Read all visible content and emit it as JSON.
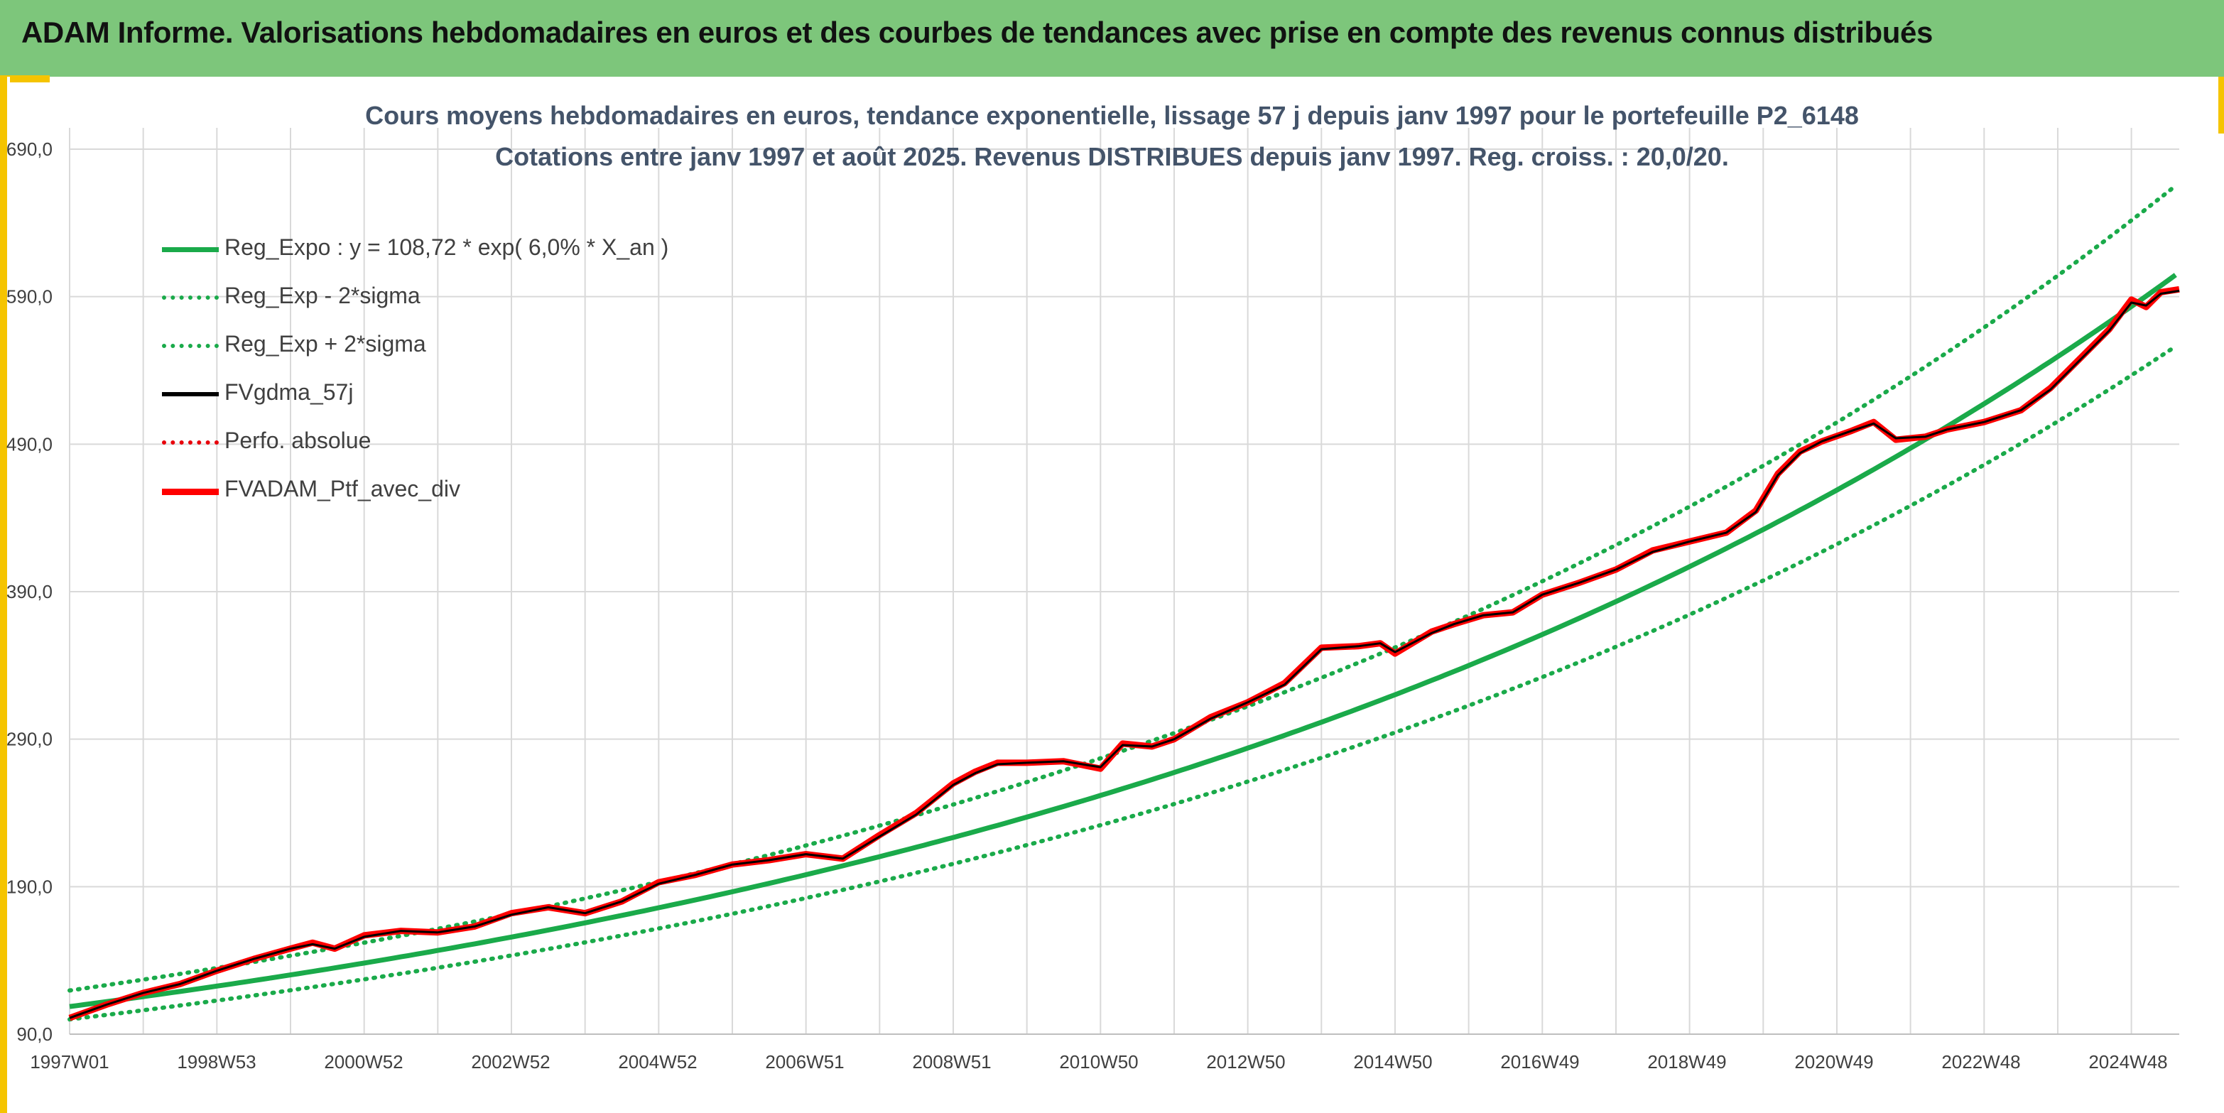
{
  "header": {
    "title": "ADAM Informe. Valorisations hebdomadaires en euros et des courbes de tendances avec prise en compte des revenus connus distribués"
  },
  "colors": {
    "banner": "#7dc67b",
    "trend": "#1aaa4a",
    "fv_gdma": "#000000",
    "perfo": "#e8000b",
    "portfolio": "#ff0000",
    "grid": "#d9d9d9",
    "frame": "#f5c400"
  },
  "chart_data": {
    "type": "line",
    "title": "Cours moyens hebdomadaires en euros, tendance exponentielle, lissage 57 j depuis janv 1997 pour le portefeuille P2_6148",
    "subtitle": "Cotations entre janv 1997 et août 2025. Revenus DISTRIBUES depuis janv 1997. Reg. croiss. : 20,0/20.",
    "xlabel": "",
    "ylabel": "",
    "ylim": [
      90,
      690
    ],
    "y_ticks": [
      "90,0",
      "190,0",
      "290,0",
      "390,0",
      "490,0",
      "590,0",
      "690,0"
    ],
    "x_ticks": [
      "1997W01",
      "1998W53",
      "2000W52",
      "2002W52",
      "2004W52",
      "2006W51",
      "2008W51",
      "2010W50",
      "2012W50",
      "2014W50",
      "2016W49",
      "2018W49",
      "2020W49",
      "2022W48",
      "2024W48"
    ],
    "x_range_years": [
      1997.0,
      2025.65
    ],
    "grid": true,
    "legend_position": "top-left",
    "legend": [
      {
        "label": "Reg_Expo : y = 108,72 * exp( 6,0% *  X_an )",
        "style": "solid",
        "color": "#1aaa4a"
      },
      {
        "label": "Reg_Exp - 2*sigma",
        "style": "dotted",
        "color": "#1aaa4a"
      },
      {
        "label": "Reg_Exp + 2*sigma",
        "style": "dotted",
        "color": "#1aaa4a"
      },
      {
        "label": "FVgdma_57j",
        "style": "solid",
        "color": "#000000"
      },
      {
        "label": "Perfo. absolue",
        "style": "dotted",
        "color": "#e8000b"
      },
      {
        "label": "FVADAM_Ptf_avec_div",
        "style": "solid",
        "color": "#ff0000"
      }
    ],
    "regression": {
      "a": 108.72,
      "rate": 0.06,
      "upper_factor": 1.1,
      "lower_factor": 0.92
    },
    "series": [
      {
        "name": "FVADAM_Ptf_avec_div",
        "x": [
          1997.0,
          1997.5,
          1998.0,
          1998.5,
          1999.0,
          1999.5,
          2000.0,
          2000.3,
          2000.6,
          2001.0,
          2001.5,
          2002.0,
          2002.5,
          2003.0,
          2003.5,
          2004.0,
          2004.5,
          2005.0,
          2005.5,
          2006.0,
          2006.5,
          2007.0,
          2007.5,
          2008.0,
          2008.5,
          2009.0,
          2009.3,
          2009.6,
          2010.0,
          2010.5,
          2011.0,
          2011.3,
          2011.7,
          2012.0,
          2012.5,
          2013.0,
          2013.5,
          2014.0,
          2014.5,
          2014.8,
          2015.0,
          2015.5,
          2015.8,
          2016.2,
          2016.6,
          2017.0,
          2017.5,
          2018.0,
          2018.5,
          2019.0,
          2019.5,
          2019.9,
          2020.2,
          2020.5,
          2020.8,
          2021.2,
          2021.5,
          2021.8,
          2022.2,
          2022.5,
          2023.0,
          2023.5,
          2023.9,
          2024.3,
          2024.7,
          2025.0,
          2025.2,
          2025.4,
          2025.65
        ],
        "values": [
          101,
          110,
          118,
          124,
          133,
          141,
          148,
          152,
          148,
          157,
          160,
          159,
          163,
          172,
          176,
          172,
          180,
          193,
          198,
          205,
          208,
          212,
          209,
          225,
          240,
          260,
          268,
          274,
          274,
          275,
          270,
          287,
          285,
          290,
          305,
          315,
          328,
          352,
          353,
          355,
          348,
          363,
          368,
          374,
          376,
          388,
          396,
          405,
          418,
          424,
          430,
          445,
          470,
          485,
          492,
          499,
          505,
          493,
          495,
          500,
          505,
          513,
          528,
          548,
          568,
          588,
          583,
          593,
          595
        ]
      },
      {
        "name": "FVgdma_57j",
        "x": [
          1997.0,
          1997.5,
          1998.0,
          1998.5,
          1999.0,
          1999.5,
          2000.0,
          2000.3,
          2000.6,
          2001.0,
          2001.5,
          2002.0,
          2002.5,
          2003.0,
          2003.5,
          2004.0,
          2004.5,
          2005.0,
          2005.5,
          2006.0,
          2006.5,
          2007.0,
          2007.5,
          2008.0,
          2008.5,
          2009.0,
          2009.3,
          2009.6,
          2010.0,
          2010.5,
          2011.0,
          2011.3,
          2011.7,
          2012.0,
          2012.5,
          2013.0,
          2013.5,
          2014.0,
          2014.5,
          2014.8,
          2015.0,
          2015.5,
          2015.8,
          2016.2,
          2016.6,
          2017.0,
          2017.5,
          2018.0,
          2018.5,
          2019.0,
          2019.5,
          2019.9,
          2020.2,
          2020.5,
          2020.8,
          2021.2,
          2021.5,
          2021.8,
          2022.2,
          2022.5,
          2023.0,
          2023.5,
          2023.9,
          2024.3,
          2024.7,
          2025.0,
          2025.2,
          2025.4,
          2025.65
        ],
        "values": [
          101,
          110,
          118,
          124,
          133,
          141,
          148,
          151,
          148,
          156,
          160,
          159,
          163,
          171,
          176,
          172,
          180,
          192,
          198,
          205,
          208,
          212,
          209,
          224,
          239,
          259,
          267,
          273,
          274,
          275,
          271,
          286,
          285,
          290,
          304,
          315,
          327,
          351,
          353,
          355,
          349,
          362,
          368,
          374,
          376,
          388,
          396,
          405,
          417,
          424,
          430,
          444,
          469,
          484,
          492,
          499,
          504,
          494,
          495,
          500,
          505,
          513,
          527,
          547,
          567,
          586,
          584,
          592,
          594
        ]
      }
    ]
  }
}
